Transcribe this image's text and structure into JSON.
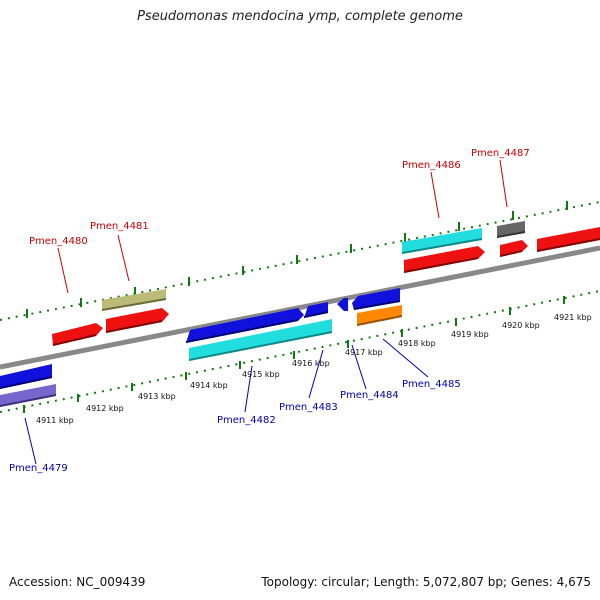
{
  "title": "Pseudomonas mendocina ymp, complete genome",
  "footer": {
    "accession": "Accession: NC_009439",
    "stats": "Topology: circular; Length: 5,072,807 bp; Genes: 4,675"
  },
  "colors": {
    "red": "#ee1111",
    "cyan": "#22dddd",
    "blue": "#1111dd",
    "olive": "#bbbb77",
    "gray": "#666666",
    "orange": "#ff8800",
    "slate": "#7766cc",
    "tick": "#117711",
    "label_top": "#cc0000",
    "label_bottom": "#0000aa"
  },
  "scale": [
    {
      "label": "4911 kbp"
    },
    {
      "label": "4912 kbp"
    },
    {
      "label": "4913 kbp"
    },
    {
      "label": "4914 kbp"
    },
    {
      "label": "4915 kbp"
    },
    {
      "label": "4916 kbp"
    },
    {
      "label": "4917 kbp"
    },
    {
      "label": "4918 kbp"
    },
    {
      "label": "4919 kbp"
    },
    {
      "label": "4920 kbp"
    },
    {
      "label": "4921 kbp"
    }
  ],
  "genes": [
    {
      "name": "Pmen_4479"
    },
    {
      "name": "Pmen_4480"
    },
    {
      "name": "Pmen_4481"
    },
    {
      "name": "Pmen_4482"
    },
    {
      "name": "Pmen_4483"
    },
    {
      "name": "Pmen_4484"
    },
    {
      "name": "Pmen_4485"
    },
    {
      "name": "Pmen_4486"
    },
    {
      "name": "Pmen_4487"
    }
  ]
}
